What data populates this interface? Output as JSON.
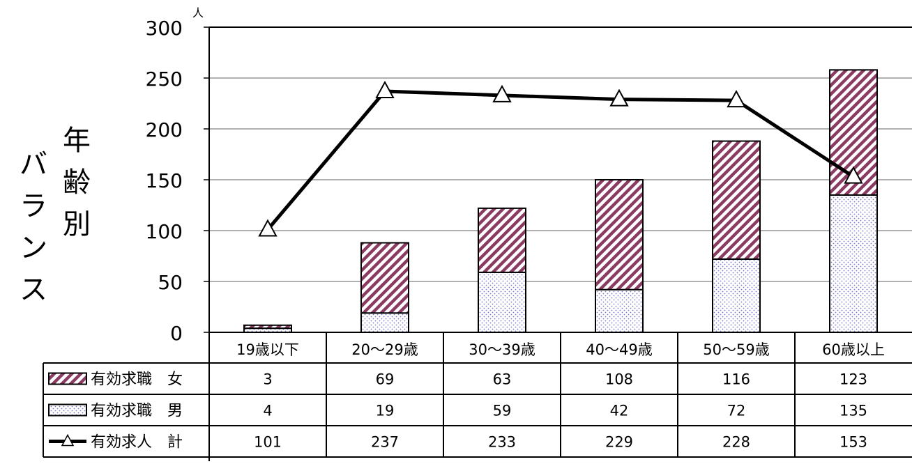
{
  "chart_data": {
    "type": "bar",
    "stacked": true,
    "title_main": "年齢別",
    "title_sub": "バランス",
    "y_unit": "人",
    "ylim": [
      0,
      300
    ],
    "yticks": [
      0,
      50,
      100,
      150,
      200,
      250,
      300
    ],
    "grid": true,
    "categories": [
      "19歳以下",
      "20～29歳",
      "30～39歳",
      "40～49歳",
      "50～59歳",
      "60歳以上"
    ],
    "series": [
      {
        "name": "有効求職　女",
        "kind": "bar",
        "pattern": "diagonal-hatch",
        "color": "#8B3A62",
        "values": [
          3,
          69,
          63,
          108,
          116,
          123
        ]
      },
      {
        "name": "有効求職　男",
        "kind": "bar",
        "pattern": "dotted",
        "color": "#7777cc",
        "values": [
          4,
          19,
          59,
          42,
          72,
          135
        ]
      },
      {
        "name": "有効求人　計",
        "kind": "line",
        "marker": "triangle",
        "color": "#000000",
        "values": [
          101,
          237,
          233,
          229,
          228,
          153
        ]
      }
    ],
    "legend_placement": "data-table"
  }
}
